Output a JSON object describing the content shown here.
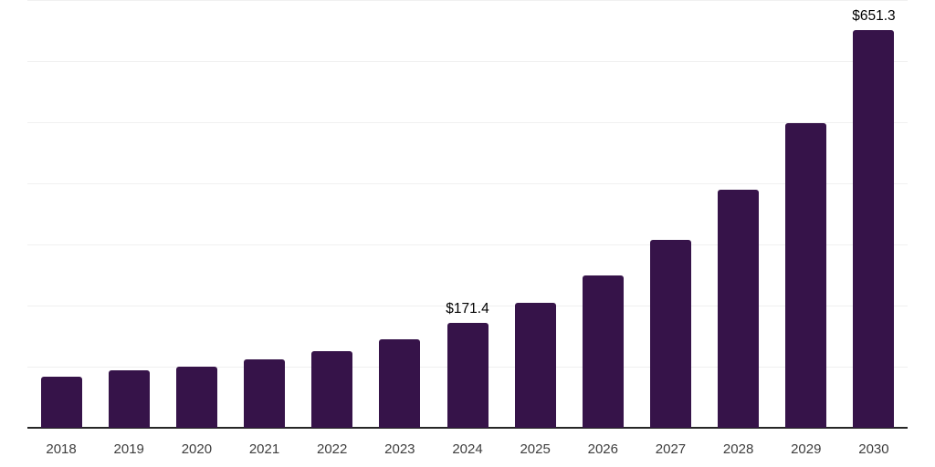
{
  "chart_data": {
    "type": "bar",
    "title": "",
    "xlabel": "",
    "ylabel": "",
    "categories": [
      "2018",
      "2019",
      "2020",
      "2021",
      "2022",
      "2023",
      "2024",
      "2025",
      "2026",
      "2027",
      "2028",
      "2029",
      "2030"
    ],
    "values": [
      84,
      94,
      100,
      112,
      125,
      145,
      171.4,
      204,
      250,
      307,
      390,
      499,
      651.3
    ],
    "data_labels": {
      "2024": "$171.4",
      "2030": "$651.3"
    },
    "ylim": [
      0,
      700
    ],
    "gridline_step": 100,
    "grid": true,
    "legend": false,
    "colors": {
      "bar": "#361349",
      "axis_line": "#262626",
      "gridline": "#f0f0f0",
      "tick_label": "#3d3d3d",
      "data_label": "#000000",
      "background": "#ffffff"
    }
  }
}
